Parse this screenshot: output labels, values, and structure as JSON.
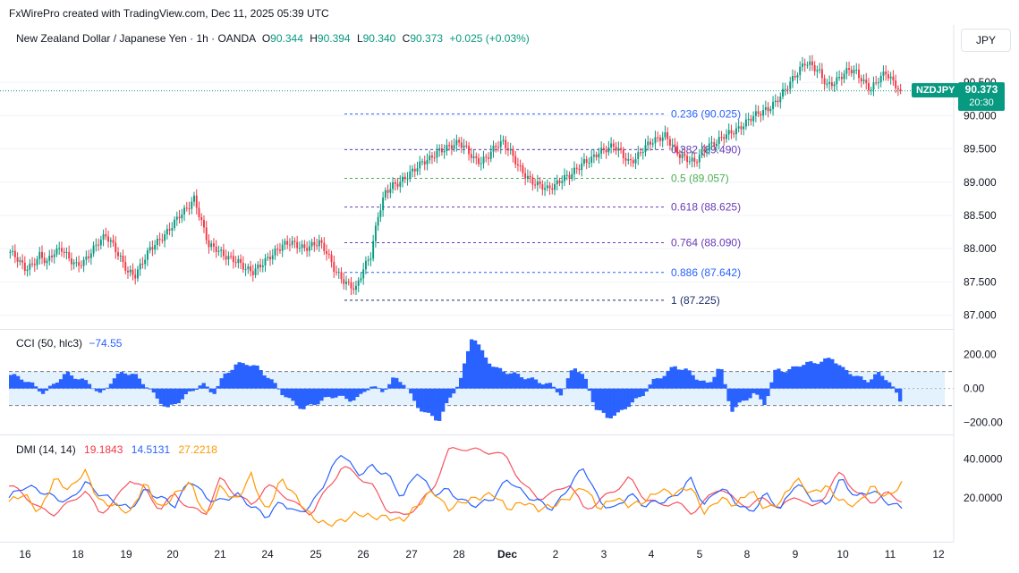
{
  "header": {
    "created_text": "FxWirePro created with TradingView.com, Dec 11, 2025 05:39 UTC"
  },
  "symbol_legend": {
    "title": "New Zealand Dollar / Japanese Yen · 1h · OANDA",
    "o_label": "O",
    "o_value": "90.344",
    "h_label": "H",
    "h_value": "90.394",
    "l_label": "L",
    "l_value": "90.340",
    "c_label": "C",
    "c_value": "90.373",
    "change": "+0.025 (+0.03%)"
  },
  "currency_button": "JPY",
  "last_price": {
    "symbol": "NZDJPY",
    "price": "90.373",
    "countdown": "20:30"
  },
  "colors": {
    "up": "#089981",
    "down": "#f23645",
    "cci_fill": "#2962ff",
    "cci_band": "#e3f2fd",
    "plus_di": "#f7525f",
    "minus_di": "#2962ff",
    "adx": "#ff9800",
    "fib_blue": "#2962ff",
    "fib_purple": "#673ab7",
    "fib_green": "#4caf50",
    "fib_dark": "#1e2f6b"
  },
  "chart_data": [
    {
      "type": "candlestick",
      "symbol": "NZDJPY",
      "timeframe": "1h",
      "x_ticks": [
        "16",
        "18",
        "19",
        "20",
        "21",
        "24",
        "25",
        "26",
        "27",
        "28",
        "Dec",
        "2",
        "3",
        "4",
        "5",
        "8",
        "9",
        "10",
        "11",
        "12"
      ],
      "y_ticks": [
        "90.500",
        "90.000",
        "89.500",
        "89.000",
        "88.500",
        "88.000",
        "87.500",
        "87.000"
      ],
      "ylim": [
        86.9,
        91.0
      ],
      "approx_closes": [
        87.95,
        87.85,
        87.7,
        87.75,
        87.9,
        87.8,
        87.95,
        88.0,
        87.85,
        87.75,
        87.8,
        87.95,
        88.1,
        88.2,
        88.05,
        87.85,
        87.65,
        87.6,
        87.8,
        88.0,
        88.1,
        88.2,
        88.35,
        88.5,
        88.6,
        88.75,
        88.4,
        88.05,
        88.0,
        87.9,
        87.85,
        87.8,
        87.7,
        87.65,
        87.75,
        87.85,
        87.95,
        88.05,
        88.1,
        88.05,
        88.0,
        88.05,
        88.1,
        87.95,
        87.7,
        87.55,
        87.45,
        87.4,
        87.7,
        87.9,
        88.5,
        88.85,
        88.95,
        89.0,
        89.1,
        89.2,
        89.3,
        89.35,
        89.45,
        89.5,
        89.55,
        89.6,
        89.5,
        89.35,
        89.3,
        89.4,
        89.55,
        89.6,
        89.45,
        89.25,
        89.1,
        89.0,
        88.95,
        88.9,
        88.95,
        89.05,
        89.1,
        89.2,
        89.3,
        89.35,
        89.45,
        89.5,
        89.55,
        89.45,
        89.3,
        89.35,
        89.5,
        89.6,
        89.65,
        89.7,
        89.55,
        89.4,
        89.35,
        89.3,
        89.45,
        89.55,
        89.6,
        89.7,
        89.75,
        89.8,
        89.9,
        90.0,
        90.05,
        90.1,
        90.2,
        90.35,
        90.5,
        90.65,
        90.8,
        90.75,
        90.65,
        90.45,
        90.5,
        90.6,
        90.7,
        90.65,
        90.5,
        90.4,
        90.55,
        90.65,
        90.5,
        90.37
      ],
      "last_price": 90.373,
      "fibonacci": [
        {
          "label": "0.236 (90.025)",
          "price": 90.025
        },
        {
          "label": "0.382 (89.490)",
          "price": 89.49
        },
        {
          "label": "0.5 (89.057)",
          "price": 89.057
        },
        {
          "label": "0.618 (88.625)",
          "price": 88.625
        },
        {
          "label": "0.764 (88.090)",
          "price": 88.09
        },
        {
          "label": "0.886 (87.642)",
          "price": 87.642
        },
        {
          "label": "1 (87.225)",
          "price": 87.225
        }
      ]
    },
    {
      "type": "bar",
      "name": "CCI (50, hlc3)",
      "value_text": "−74.55",
      "y_ticks": [
        "200.00",
        "0.00",
        "−200.00"
      ],
      "ylim": [
        -260,
        330
      ],
      "band": [
        100,
        -100
      ],
      "approx_values": [
        80,
        60,
        20,
        -30,
        40,
        90,
        60,
        30,
        -40,
        50,
        100,
        80,
        20,
        -60,
        -120,
        -70,
        -20,
        30,
        -30,
        80,
        140,
        150,
        120,
        60,
        -20,
        -80,
        -120,
        -90,
        -60,
        -40,
        -70,
        -50,
        20,
        -20,
        60,
        30,
        -100,
        -150,
        -190,
        -60,
        60,
        320,
        200,
        120,
        100,
        80,
        60,
        40,
        20,
        -40,
        140,
        60,
        -120,
        -170,
        -150,
        -90,
        -50,
        40,
        80,
        130,
        110,
        60,
        20,
        140,
        -130,
        -80,
        -30,
        -90,
        120,
        100,
        140,
        150,
        160,
        180,
        110,
        80,
        40,
        90,
        50,
        -75
      ]
    },
    {
      "type": "line",
      "name": "DMI (14, 14)",
      "ylim": [
        0,
        50
      ],
      "y_ticks": [
        "40.0000",
        "20.0000"
      ],
      "series": [
        {
          "name": "+DI",
          "value_text": "19.1843",
          "values": [
            26,
            22,
            14,
            12,
            17,
            24,
            12,
            18,
            30,
            24,
            14,
            22,
            14,
            12,
            30,
            22,
            16,
            26,
            23,
            16,
            12,
            24,
            36,
            32,
            26,
            14,
            10,
            16,
            24,
            44,
            46,
            44,
            44,
            40,
            26,
            20,
            22,
            28,
            14,
            18,
            24,
            30,
            20,
            16,
            18,
            12,
            18,
            26,
            18,
            16,
            20,
            14,
            22,
            14,
            22,
            34,
            22,
            18,
            22,
            19
          ]
        },
        {
          "name": "−DI",
          "value_text": "14.5131",
          "values": [
            20,
            26,
            24,
            20,
            18,
            28,
            22,
            18,
            14,
            24,
            20,
            16,
            30,
            20,
            18,
            22,
            16,
            10,
            18,
            12,
            16,
            30,
            44,
            32,
            36,
            32,
            20,
            34,
            22,
            24,
            18,
            16,
            20,
            30,
            22,
            18,
            14,
            26,
            36,
            18,
            14,
            22,
            16,
            18,
            20,
            30,
            16,
            26,
            18,
            12,
            22,
            14,
            28,
            20,
            16,
            30,
            20,
            24,
            18,
            14.5
          ]
        },
        {
          "name": "ADX",
          "value_text": "27.2218",
          "values": [
            18,
            22,
            12,
            30,
            24,
            34,
            18,
            16,
            12,
            28,
            14,
            22,
            28,
            10,
            26,
            18,
            32,
            12,
            30,
            20,
            10,
            6,
            8,
            12,
            10,
            10,
            8,
            16,
            24,
            14,
            18,
            20,
            22,
            14,
            18,
            14,
            16,
            20,
            26,
            14,
            20,
            16,
            18,
            24,
            22,
            26,
            12,
            20,
            16,
            24,
            14,
            18,
            30,
            22,
            26,
            18,
            16,
            26,
            20,
            27.2
          ]
        }
      ]
    }
  ]
}
